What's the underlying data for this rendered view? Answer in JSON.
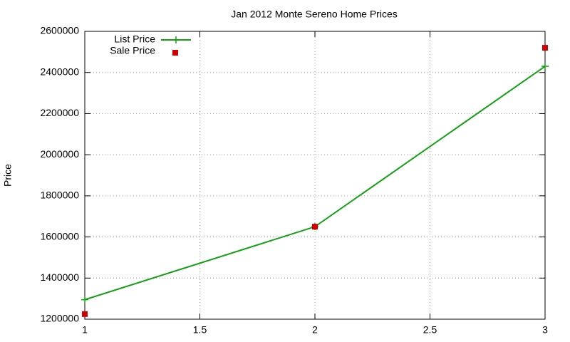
{
  "chart_data": {
    "type": "line",
    "title": "Jan 2012 Monte Sereno Home Prices",
    "y_label": "Price",
    "x": [
      1,
      2,
      3
    ],
    "series": [
      {
        "name": "List Price",
        "color": "#11a011",
        "mode": "linespoints",
        "values": [
          1295000,
          1650000,
          2430000
        ]
      },
      {
        "name": "Sale Price",
        "color": "#cc0000",
        "mode": "points",
        "values": [
          1225000,
          1650000,
          2520000
        ]
      }
    ],
    "xlim": [
      1,
      3
    ],
    "xticks": [
      1,
      1.5,
      2,
      2.5,
      3
    ],
    "ylim": [
      1200000,
      2600000
    ],
    "yticks": [
      1200000,
      1400000,
      1600000,
      1800000,
      2000000,
      2200000,
      2400000,
      2600000
    ],
    "grid": true,
    "legend": "top-left"
  }
}
